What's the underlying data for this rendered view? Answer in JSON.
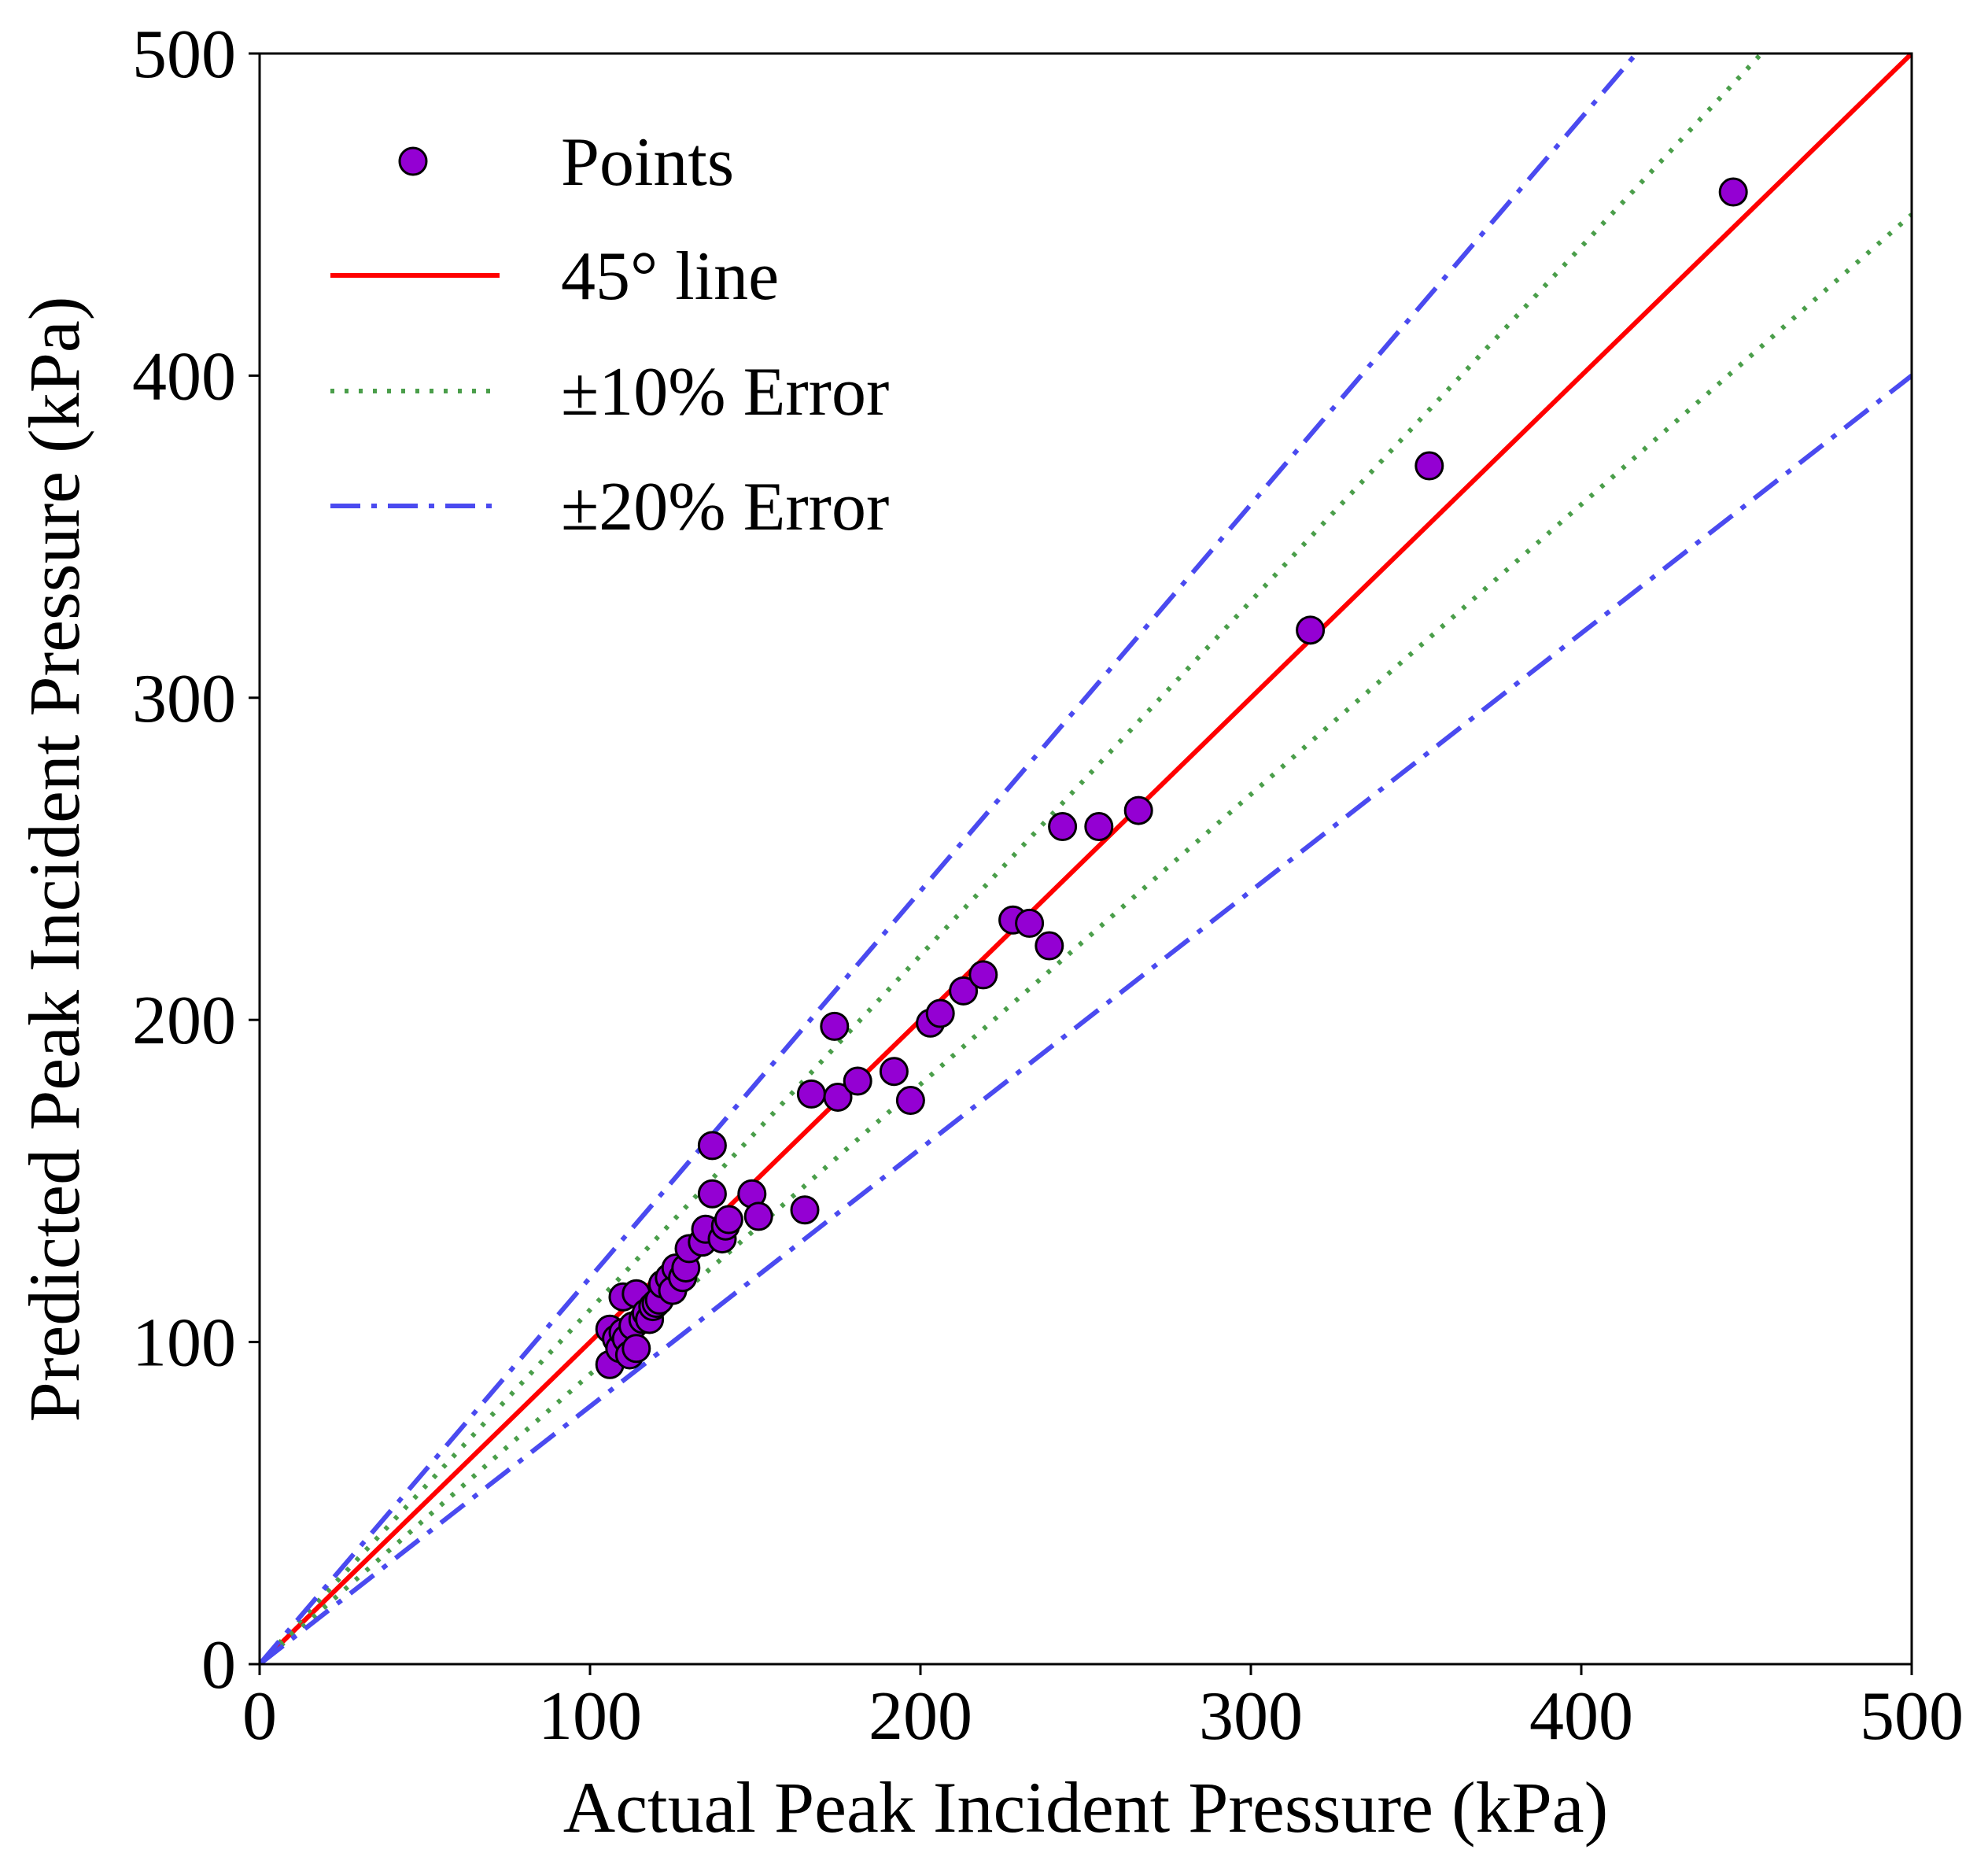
{
  "chart_data": {
    "type": "scatter",
    "xlabel": "Actual Peak Incident Pressure (kPa)",
    "ylabel": "Predicted Peak Incident Pressure (kPa)",
    "xlim": [
      0,
      500
    ],
    "ylim": [
      0,
      500
    ],
    "xticks": [
      "0",
      "100",
      "200",
      "300",
      "400",
      "500"
    ],
    "yticks": [
      "0",
      "100",
      "200",
      "300",
      "400",
      "500"
    ],
    "grid": false,
    "legend_position": "top-left",
    "legend": [
      {
        "key": "points",
        "label": "Points",
        "style": "marker",
        "color": "#9400D3"
      },
      {
        "key": "ideal",
        "label": "45° line",
        "style": "solid",
        "color": "#ff0000"
      },
      {
        "key": "err10",
        "label": "±10% Error",
        "style": "dotted",
        "color": "#4a9e4a"
      },
      {
        "key": "err20",
        "label": "±20% Error",
        "style": "dashdot",
        "color": "#4a4af0"
      }
    ],
    "lines": [
      {
        "key": "ideal",
        "slope": 1.0,
        "color": "#ff0000",
        "style": "solid"
      },
      {
        "key": "err10",
        "slope": 1.1,
        "color": "#4a9e4a",
        "style": "dotted"
      },
      {
        "key": "err10",
        "slope": 0.9,
        "color": "#4a9e4a",
        "style": "dotted"
      },
      {
        "key": "err20",
        "slope": 1.2,
        "color": "#4a4af0",
        "style": "dashdot"
      },
      {
        "key": "err20",
        "slope": 0.8,
        "color": "#4a4af0",
        "style": "dashdot"
      }
    ],
    "points": [
      {
        "x": 106,
        "y": 93
      },
      {
        "x": 106,
        "y": 104
      },
      {
        "x": 108,
        "y": 101
      },
      {
        "x": 109,
        "y": 98
      },
      {
        "x": 110,
        "y": 103
      },
      {
        "x": 110,
        "y": 114
      },
      {
        "x": 111,
        "y": 101
      },
      {
        "x": 112,
        "y": 96
      },
      {
        "x": 113,
        "y": 105
      },
      {
        "x": 114,
        "y": 98
      },
      {
        "x": 114,
        "y": 115
      },
      {
        "x": 116,
        "y": 107
      },
      {
        "x": 117,
        "y": 109
      },
      {
        "x": 118,
        "y": 107
      },
      {
        "x": 119,
        "y": 111
      },
      {
        "x": 120,
        "y": 112
      },
      {
        "x": 121,
        "y": 113
      },
      {
        "x": 122,
        "y": 118
      },
      {
        "x": 124,
        "y": 120
      },
      {
        "x": 125,
        "y": 116
      },
      {
        "x": 126,
        "y": 123
      },
      {
        "x": 128,
        "y": 120
      },
      {
        "x": 129,
        "y": 123
      },
      {
        "x": 130,
        "y": 129
      },
      {
        "x": 134,
        "y": 131
      },
      {
        "x": 135,
        "y": 135
      },
      {
        "x": 137,
        "y": 146
      },
      {
        "x": 137,
        "y": 161
      },
      {
        "x": 140,
        "y": 132
      },
      {
        "x": 141,
        "y": 136
      },
      {
        "x": 142,
        "y": 138
      },
      {
        "x": 149,
        "y": 146
      },
      {
        "x": 151,
        "y": 139
      },
      {
        "x": 165,
        "y": 141
      },
      {
        "x": 167,
        "y": 177
      },
      {
        "x": 174,
        "y": 198
      },
      {
        "x": 175,
        "y": 176
      },
      {
        "x": 181,
        "y": 181
      },
      {
        "x": 192,
        "y": 184
      },
      {
        "x": 197,
        "y": 175
      },
      {
        "x": 203,
        "y": 199
      },
      {
        "x": 206,
        "y": 202
      },
      {
        "x": 213,
        "y": 209
      },
      {
        "x": 219,
        "y": 214
      },
      {
        "x": 228,
        "y": 231
      },
      {
        "x": 233,
        "y": 230
      },
      {
        "x": 239,
        "y": 223
      },
      {
        "x": 243,
        "y": 260
      },
      {
        "x": 254,
        "y": 260
      },
      {
        "x": 266,
        "y": 265
      },
      {
        "x": 318,
        "y": 321
      },
      {
        "x": 354,
        "y": 372
      },
      {
        "x": 446,
        "y": 457
      }
    ]
  }
}
